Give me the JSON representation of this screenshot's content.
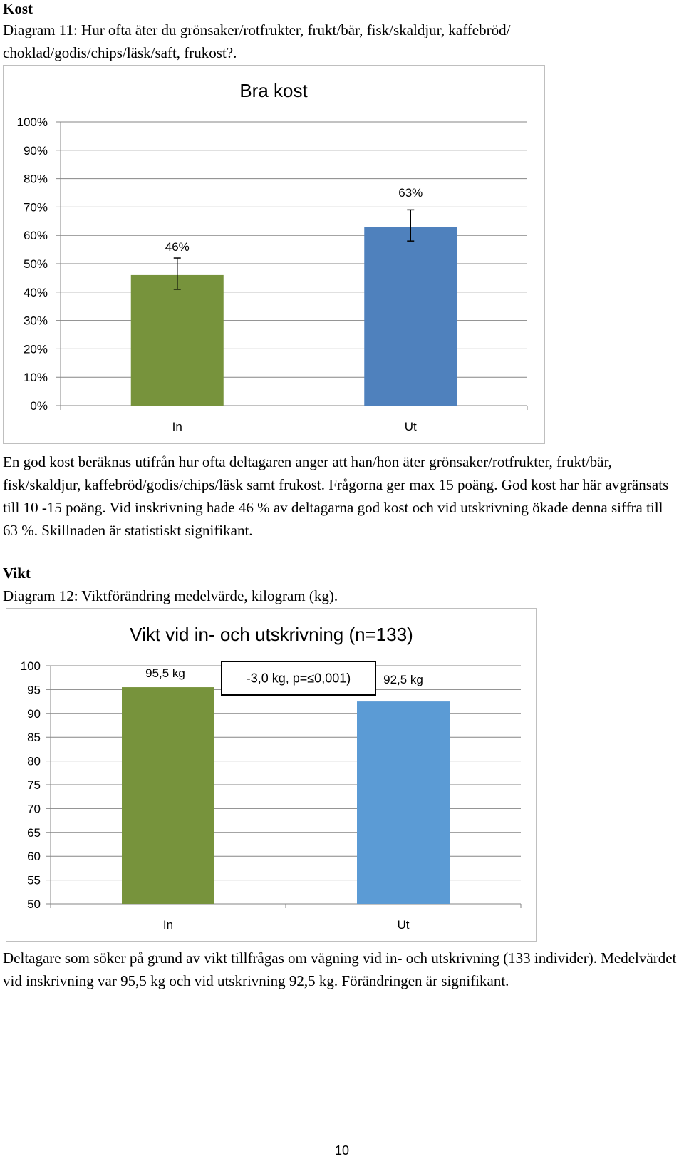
{
  "section1": {
    "heading": "Kost",
    "caption": "Diagram 11: Hur ofta äter du grönsaker/rotfrukter, frukt/bär, fisk/skaldjur, kaffebröd/ choklad/godis/chips/läsk/saft, frukost?.",
    "paragraph": "En god kost beräknas utifrån hur ofta deltagaren anger att han/hon äter grönsaker/rotfrukter, frukt/bär, fisk/skaldjur, kaffebröd/godis/chips/läsk samt frukost. Frågorna ger max 15 poäng. God kost har här avgränsats till 10 -15 poäng. Vid inskrivning hade 46 % av deltagarna god kost och vid utskrivning ökade denna siffra till 63 %. Skillnaden är statistiskt signifikant."
  },
  "section2": {
    "heading": "Vikt",
    "caption": "Diagram 12: Viktförändring medelvärde, kilogram (kg).",
    "paragraph": "Deltagare som söker på grund av vikt tillfrågas om vägning vid in- och utskrivning (133 individer). Medelvärdet vid inskrivning var 95,5 kg och vid utskrivning 92,5 kg. Förändringen är signifikant."
  },
  "page_number": "10",
  "chart_data": [
    {
      "type": "bar",
      "title": "Bra kost",
      "categories": [
        "In",
        "Ut"
      ],
      "values": [
        46,
        63
      ],
      "data_labels": [
        "46%",
        "63%"
      ],
      "error_bars": [
        [
          41,
          52
        ],
        [
          58,
          69
        ]
      ],
      "colors": [
        "#77933c",
        "#4f81bd"
      ],
      "ylim": [
        0,
        100
      ],
      "y_ticks": [
        "0%",
        "10%",
        "20%",
        "30%",
        "40%",
        "50%",
        "60%",
        "70%",
        "80%",
        "90%",
        "100%"
      ],
      "grid": true,
      "legend": "none"
    },
    {
      "type": "bar",
      "title": "Vikt vid in- och utskrivning (n=133)",
      "categories": [
        "In",
        "Ut"
      ],
      "values": [
        95.5,
        92.5
      ],
      "data_labels": [
        "95,5 kg",
        "92,5 kg"
      ],
      "annotation": "-3,0 kg, p=≤0,001)",
      "colors": [
        "#77933c",
        "#5b9bd5"
      ],
      "ylim": [
        50,
        100
      ],
      "y_ticks": [
        "50",
        "55",
        "60",
        "65",
        "70",
        "75",
        "80",
        "85",
        "90",
        "95",
        "100"
      ],
      "grid": true,
      "legend": "none"
    }
  ]
}
